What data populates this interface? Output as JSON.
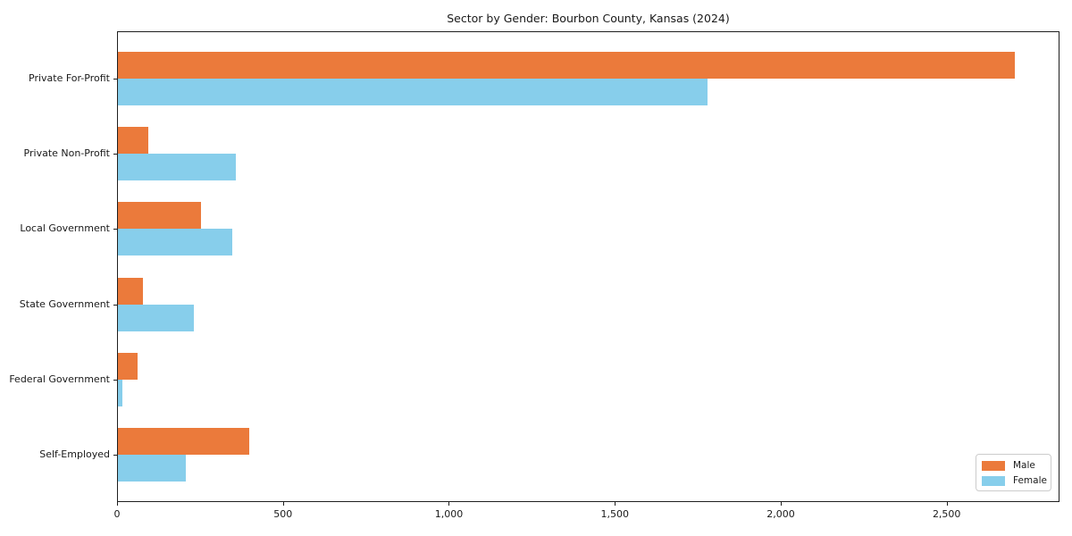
{
  "chart_data": {
    "type": "bar",
    "orientation": "horizontal",
    "title": "Sector by Gender: Bourbon County, Kansas (2024)",
    "categories": [
      "Private For-Profit",
      "Private Non-Profit",
      "Local Government",
      "State Government",
      "Federal Government",
      "Self-Employed"
    ],
    "series": [
      {
        "name": "Male",
        "color": "#EB7A3B",
        "values": [
          2704,
          91,
          251,
          76,
          58,
          395
        ]
      },
      {
        "name": "Female",
        "color": "#87CEEB",
        "values": [
          1778,
          356,
          345,
          228,
          13,
          204
        ]
      }
    ],
    "xlabel": "",
    "ylabel": "",
    "xlim": [
      0,
      2840
    ],
    "xticks": [
      0,
      500,
      1000,
      1500,
      2000,
      2500
    ],
    "xtick_labels": [
      "0",
      "500",
      "1,000",
      "1,500",
      "2,000",
      "2,500"
    ],
    "legend_position": "lower right",
    "grid": false,
    "background_color": "#ffffff",
    "spine_color": "#1f1f1f"
  }
}
